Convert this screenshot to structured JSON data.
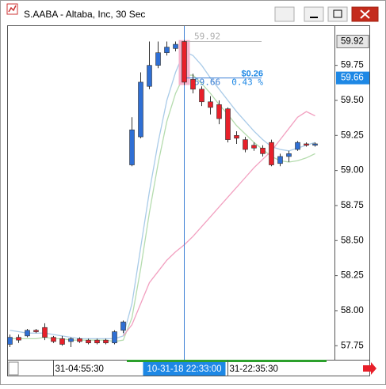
{
  "window_title": "S.AABA - Altaba, Inc, 30 Sec",
  "chart_data": {
    "type": "candlestick",
    "categories": [
      null,
      null,
      null,
      null,
      null,
      "31-04:55:30",
      null,
      null,
      null,
      null,
      null,
      null,
      null,
      null,
      null,
      null,
      null,
      null,
      null,
      null,
      null,
      null,
      null,
      null,
      null,
      "31-22:35:30",
      null,
      null,
      null,
      null,
      null,
      null,
      null,
      null,
      null,
      null
    ],
    "open": [
      57.76,
      57.81,
      57.82,
      57.86,
      57.88,
      57.81,
      57.8,
      57.78,
      57.8,
      57.79,
      57.79,
      57.79,
      57.77,
      57.86,
      59.04,
      59.24,
      59.6,
      59.75,
      59.84,
      59.87,
      59.92,
      59.65,
      59.58,
      59.49,
      59.47,
      59.44,
      59.25,
      59.22,
      59.18,
      59.16,
      59.2,
      59.05,
      59.1,
      59.15,
      59.19,
      59.18
    ],
    "high": [
      57.83,
      57.83,
      57.87,
      57.87,
      57.91,
      57.82,
      57.82,
      57.81,
      57.81,
      57.8,
      57.8,
      57.8,
      57.86,
      57.93,
      59.38,
      59.7,
      59.92,
      59.92,
      59.92,
      59.92,
      59.93,
      59.69,
      59.6,
      59.53,
      59.5,
      59.45,
      59.28,
      59.24,
      59.2,
      59.18,
      59.22,
      59.12,
      59.14,
      59.21,
      59.2,
      59.2
    ],
    "low": [
      57.74,
      57.77,
      57.81,
      57.84,
      57.79,
      57.77,
      57.75,
      57.74,
      57.77,
      57.76,
      57.76,
      57.76,
      57.76,
      57.84,
      59.03,
      59.23,
      59.58,
      59.73,
      59.82,
      59.85,
      59.61,
      59.55,
      59.46,
      59.4,
      59.33,
      59.2,
      59.19,
      59.13,
      59.14,
      59.1,
      59.03,
      59.03,
      59.06,
      59.14,
      59.17,
      59.17
    ],
    "close": [
      57.81,
      57.79,
      57.86,
      57.85,
      57.81,
      57.78,
      57.76,
      57.8,
      57.78,
      57.77,
      57.77,
      57.77,
      57.85,
      57.92,
      59.29,
      59.63,
      59.75,
      59.84,
      59.88,
      59.9,
      59.63,
      59.58,
      59.49,
      59.45,
      59.37,
      59.22,
      59.23,
      59.15,
      59.16,
      59.12,
      59.04,
      59.1,
      59.12,
      59.2,
      59.18,
      59.19
    ],
    "colors": {
      "up": "#2f6fd4",
      "down": "#e8202a"
    },
    "moving_averages": [
      {
        "color": "#a9cbe8",
        "values": [
          57.86,
          57.85,
          57.84,
          57.84,
          57.84,
          57.83,
          57.82,
          57.81,
          57.8,
          57.8,
          57.8,
          57.8,
          57.8,
          57.82,
          58.05,
          58.45,
          58.85,
          59.2,
          59.5,
          59.7,
          59.85,
          59.82,
          59.75,
          59.66,
          59.58,
          59.5,
          59.42,
          59.35,
          59.28,
          59.22,
          59.17,
          59.15,
          59.14,
          59.16,
          59.18,
          59.2
        ]
      },
      {
        "color": "#b5dcae",
        "values": [
          57.8,
          57.8,
          57.8,
          57.8,
          57.81,
          57.8,
          57.8,
          57.79,
          57.79,
          57.79,
          57.79,
          57.79,
          57.78,
          57.79,
          57.95,
          58.3,
          58.7,
          59.05,
          59.35,
          59.55,
          59.68,
          59.68,
          59.62,
          59.55,
          59.47,
          59.4,
          59.32,
          59.26,
          59.2,
          59.15,
          59.1,
          59.07,
          59.06,
          59.07,
          59.09,
          59.12
        ]
      },
      {
        "color": "#f2a0c0",
        "values": [
          null,
          null,
          null,
          null,
          null,
          null,
          null,
          null,
          null,
          null,
          null,
          null,
          null,
          57.82,
          57.9,
          58.05,
          58.2,
          58.28,
          58.36,
          58.42,
          58.47,
          58.53,
          58.6,
          58.67,
          58.74,
          58.81,
          58.88,
          58.95,
          59.02,
          59.08,
          59.14,
          59.22,
          59.3,
          59.38,
          59.42,
          59.39
        ]
      }
    ],
    "ylim": [
      57.65,
      60.03
    ],
    "yticks": [
      57.75,
      {
        "value": 58,
        "label": "58.00"
      },
      58.25,
      {
        "value": 58.5,
        "label": "58.50"
      },
      58.75,
      {
        "value": 59,
        "label": "59.00"
      },
      59.25,
      {
        "value": 59.5,
        "label": "59.50"
      },
      59.75
    ],
    "last_price": 59.92,
    "cursor": {
      "index": 20,
      "price": 59.66,
      "time_label": "10-31-18 22:33:00"
    },
    "measure": {
      "from": 59.92,
      "to": 59.66,
      "change": {
        "value": 0.26,
        "label": "$0.26"
      },
      "pct": {
        "value": 0.43,
        "label": "0.43 %"
      }
    }
  }
}
